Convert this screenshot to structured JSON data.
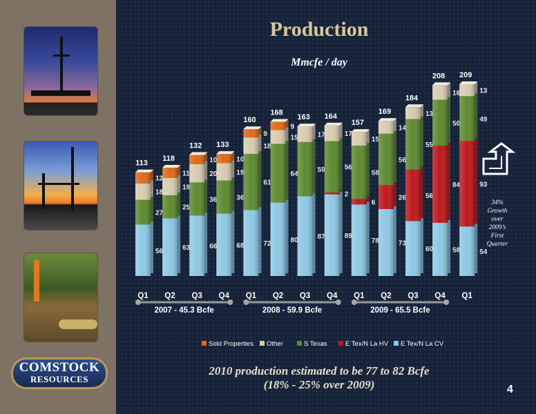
{
  "title": "Production",
  "subtitle": "Mmcfe / day",
  "growth_note": [
    "34%",
    "Growth",
    "over",
    "2009’s",
    "First",
    "Quarter"
  ],
  "footnote_line1": "2010 production estimated to be 77 to 82 Bcfe",
  "footnote_line2": "(18% - 25% over 2009)",
  "page_number": "4",
  "logo_line1": "COMSTOCK",
  "logo_line2": "RESOURCES",
  "chart_data": {
    "type": "bar",
    "stacked": true,
    "categories": [
      "Q1",
      "Q2",
      "Q3",
      "Q4",
      "Q1",
      "Q2",
      "Q3",
      "Q4",
      "Q1",
      "Q2",
      "Q3",
      "Q4",
      "Q1"
    ],
    "series": [
      {
        "name": "E Tex/N La CV",
        "color": "#8ec8e4",
        "values": [
          56,
          63,
          66,
          68,
          72,
          80,
          87,
          89,
          78,
          73,
          60,
          58,
          54
        ]
      },
      {
        "name": "E Tex/N La HV",
        "color": "#c0181c",
        "values": [
          0,
          0,
          0,
          0,
          0,
          0,
          0,
          2,
          6,
          26,
          56,
          84,
          93
        ]
      },
      {
        "name": "S Texas",
        "color": "#5e8a30",
        "values": [
          27,
          25,
          36,
          36,
          61,
          64,
          59,
          56,
          58,
          56,
          55,
          50,
          49
        ]
      },
      {
        "name": "Other",
        "color": "#d8ccb0",
        "values": [
          18,
          19,
          20,
          19,
          18,
          15,
          17,
          17,
          15,
          14,
          13,
          16,
          13
        ]
      },
      {
        "name": "Sold Properties",
        "color": "#e06a18",
        "values": [
          12,
          11,
          10,
          10,
          9,
          9,
          0,
          0,
          0,
          0,
          0,
          0,
          0
        ]
      }
    ],
    "totals": [
      "113",
      "118",
      "132",
      "133",
      "160",
      "168",
      "163",
      "164",
      "157",
      "169",
      "184",
      "208",
      "209"
    ],
    "groups": [
      {
        "label": "2007 - 45.3 Bcfe",
        "start": 0,
        "end": 3
      },
      {
        "label": "2008 - 59.9 Bcfe",
        "start": 4,
        "end": 7
      },
      {
        "label": "2009  - 65.5 Bcfe",
        "start": 8,
        "end": 11
      }
    ],
    "legend_order": [
      "Sold Properties",
      "Other",
      "S Texas",
      "E Tex/N La HV",
      "E Tex/N La CV"
    ],
    "legend_position": "bottom",
    "grid": false
  }
}
